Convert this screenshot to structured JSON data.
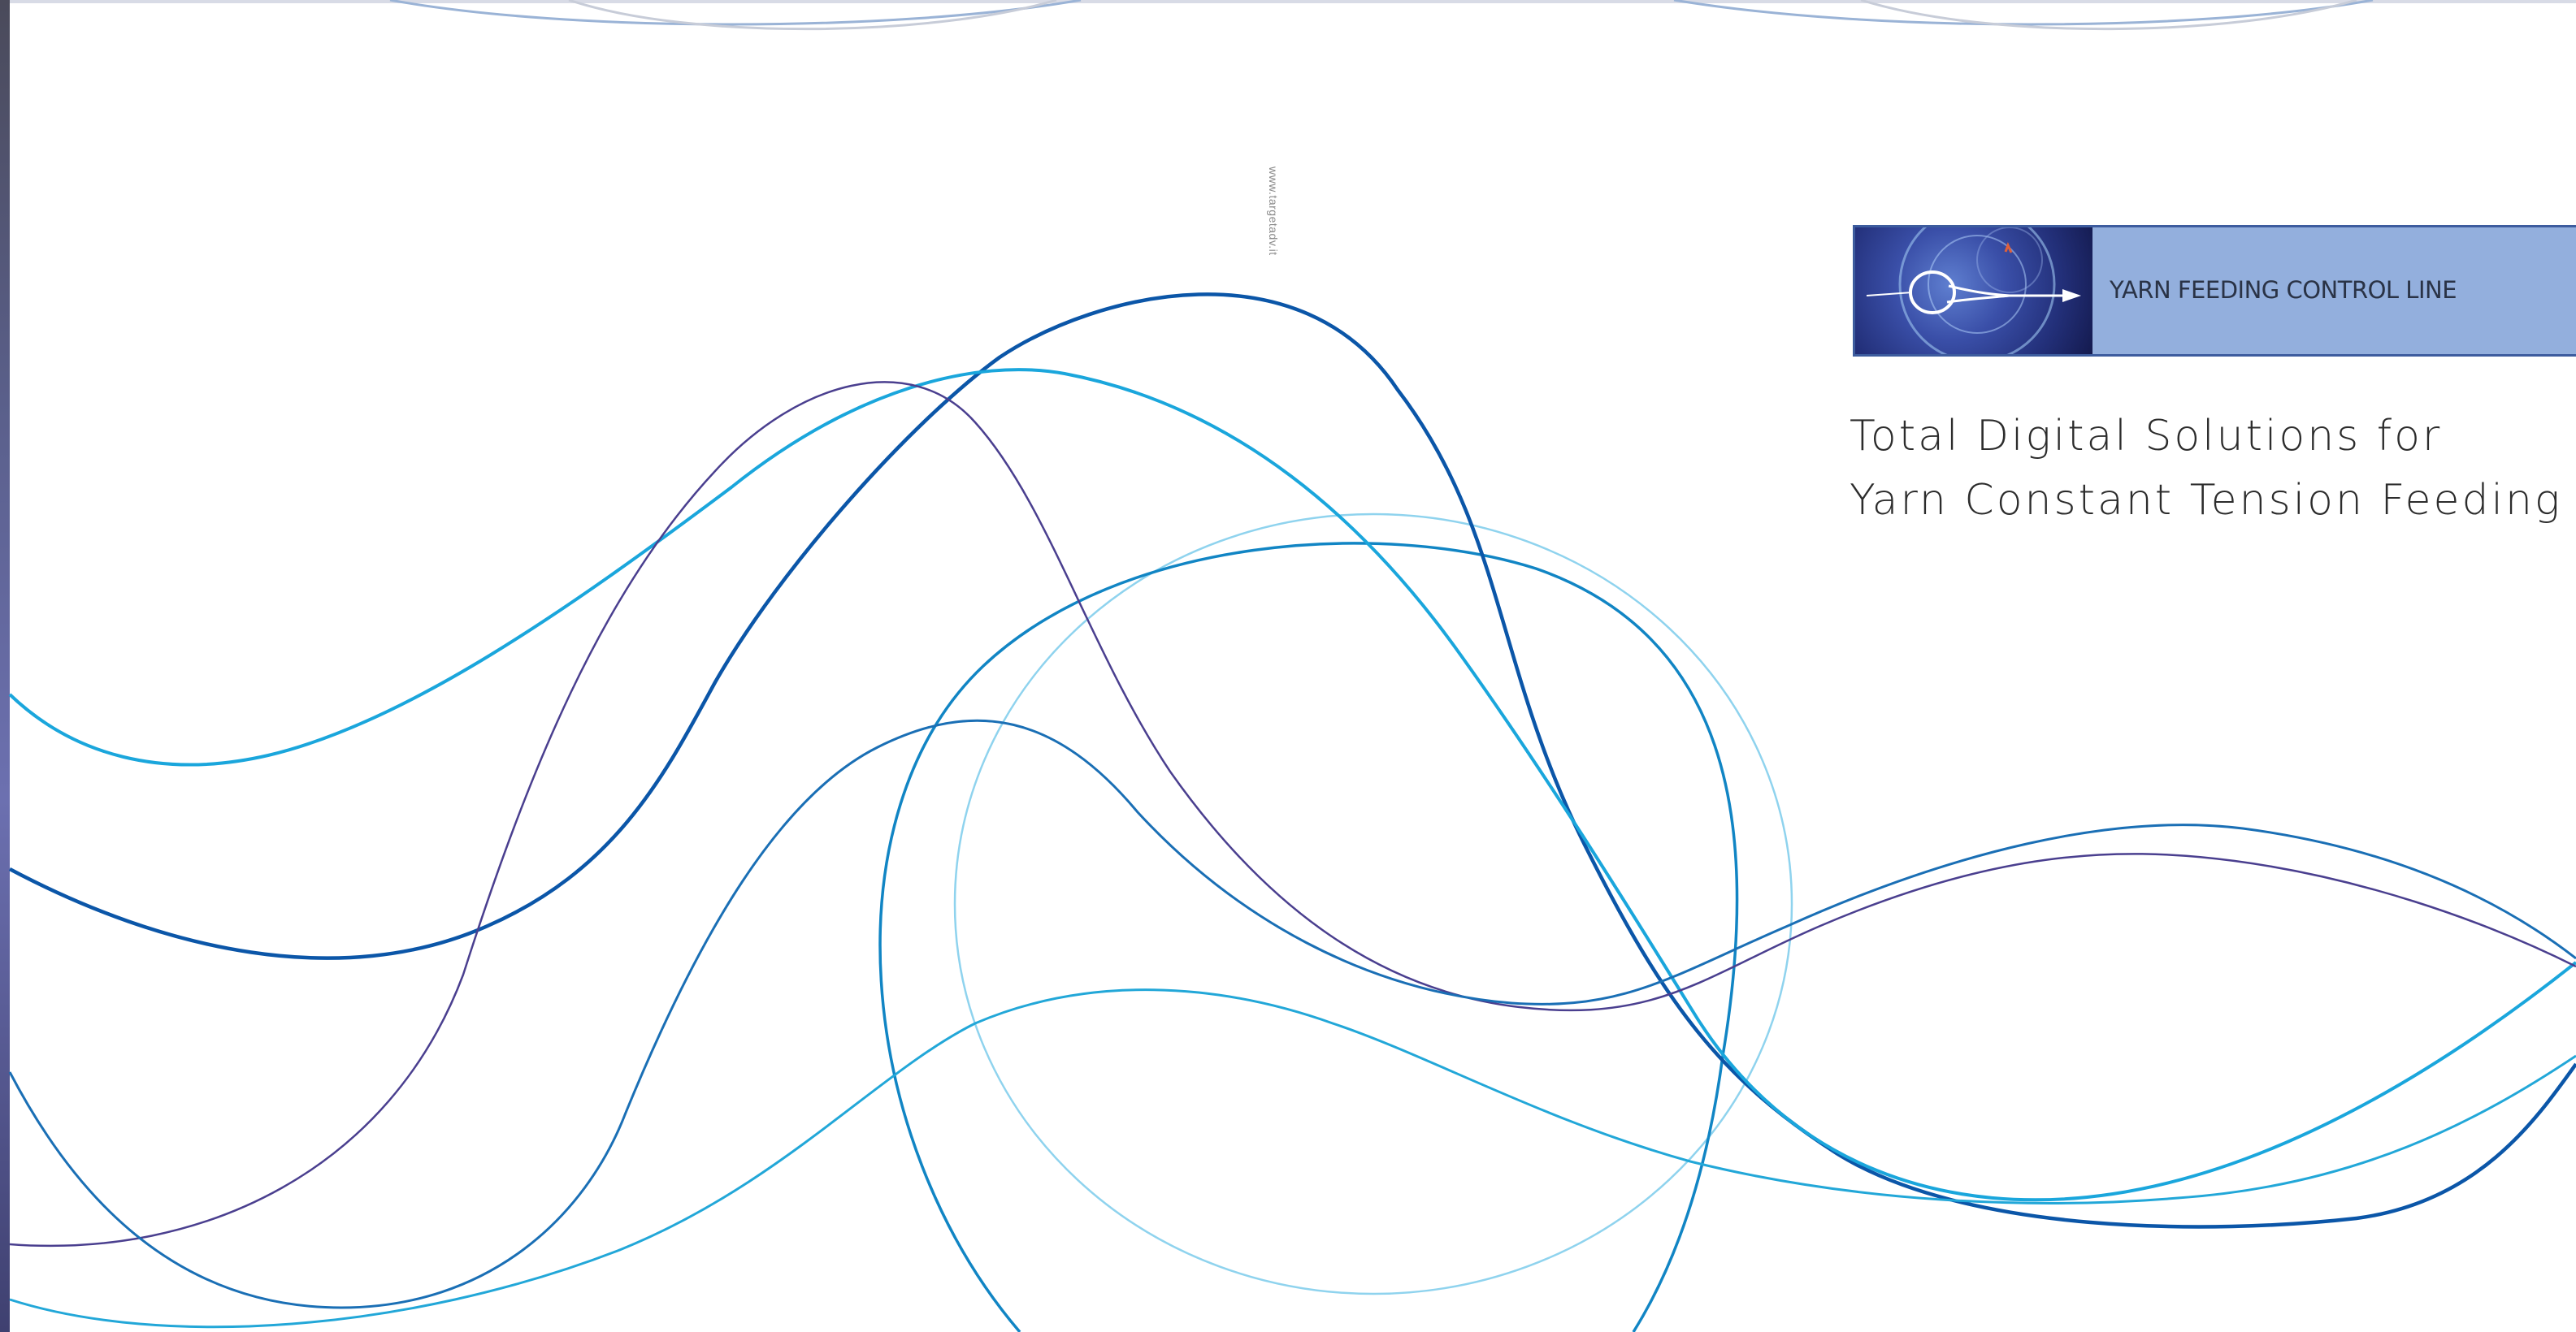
{
  "vertical_url": "www.targetadv.it",
  "banner": {
    "label": "YARN FEEDING CONTROL LINE",
    "image_icon": "yarn-loop-arrow-icon"
  },
  "headline": {
    "line1": "Total Digital Solutions for",
    "line2": "Yarn Constant Tension Feeding"
  },
  "colors": {
    "banner_bg": "#93afdd",
    "banner_border": "#3d5c9e",
    "curve_dark_blue": "#0b56a8",
    "curve_cyan": "#1aa6dc",
    "curve_purple": "#4a3f8f",
    "curve_light_cyan": "#8fd3ee",
    "curve_mid_blue": "#1185c4"
  }
}
